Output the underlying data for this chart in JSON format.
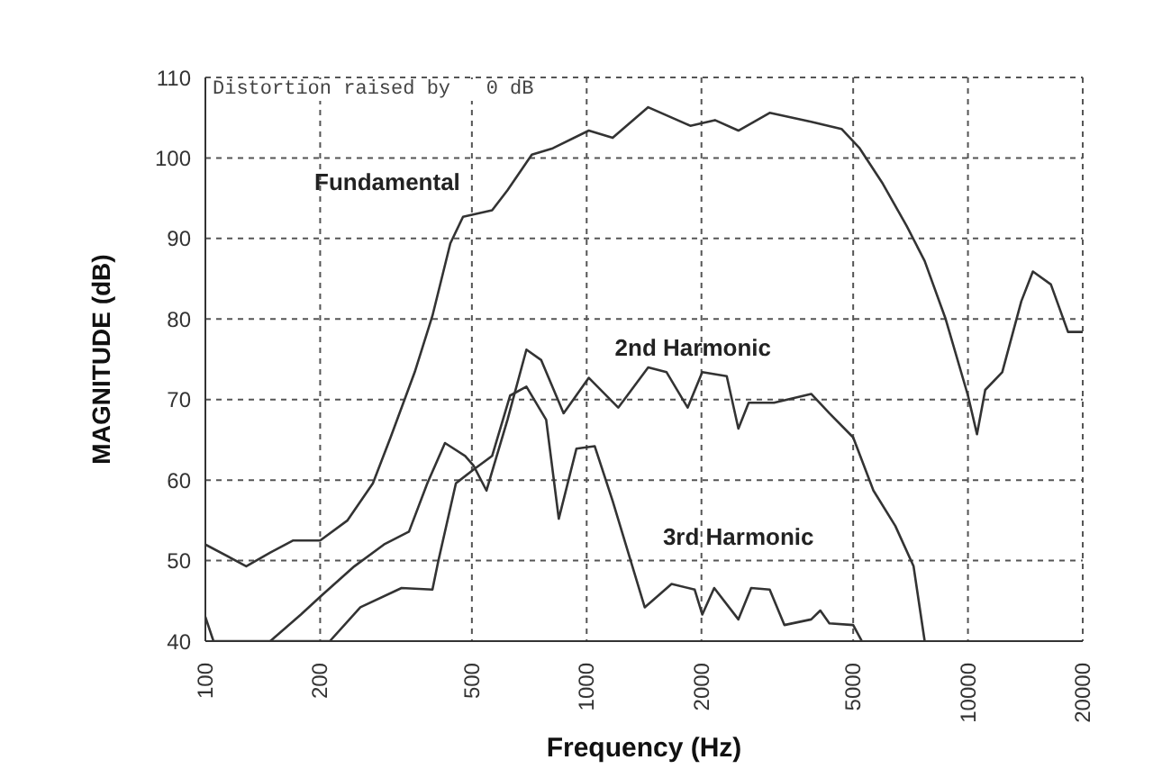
{
  "chart_data": {
    "type": "line",
    "xlabel": "Frequency (Hz)",
    "ylabel": "MAGNITUDE (dB)",
    "log": "x",
    "grid": true,
    "legend": false,
    "marker": "none",
    "line_style": "solid",
    "xlim": [
      100,
      20000
    ],
    "xticks": [
      100,
      200,
      500,
      1000,
      2000,
      5000,
      10000,
      20000
    ],
    "ylim": [
      40,
      110
    ],
    "yticks": [
      40,
      50,
      60,
      70,
      80,
      90,
      100,
      110
    ],
    "annotations": [
      "Distortion raised by   0 dB"
    ],
    "series": [
      {
        "name": "Fundamental",
        "color": "#333333",
        "x": [
          100,
          128,
          148,
          170,
          200,
          236,
          275,
          306,
          354,
          394,
          439,
          474,
          565,
          620,
          718,
          815,
          1013,
          1170,
          1450,
          1870,
          2170,
          2500,
          3020,
          3880,
          4660,
          5200,
          5980,
          6900,
          7700,
          8740,
          10000,
          10560,
          11100,
          12300,
          13800,
          14800,
          16500,
          18300,
          20000
        ],
        "values": [
          52,
          49.3,
          51,
          52.5,
          52.5,
          55,
          59.6,
          65.3,
          73.4,
          80.4,
          89.4,
          92.7,
          93.5,
          96,
          100.4,
          101.2,
          103.4,
          102.5,
          106.3,
          104,
          104.7,
          103.4,
          105.6,
          104.5,
          103.6,
          101.2,
          96.8,
          91.6,
          87.2,
          80,
          70.5,
          65.7,
          71.2,
          73.4,
          82.2,
          85.9,
          84.3,
          78.4,
          78.4
        ]
      },
      {
        "name": "2nd Harmonic",
        "color": "#333333",
        "x": [
          148,
          178,
          200,
          246,
          294,
          342,
          382,
          425,
          480,
          505,
          546,
          620,
          695,
          760,
          870,
          1013,
          1210,
          1450,
          1620,
          1840,
          2010,
          2330,
          2500,
          2660,
          3100,
          3880,
          4330,
          5000,
          5650,
          6450,
          7200,
          7700
        ],
        "values": [
          40,
          43.3,
          45.5,
          49.3,
          52,
          53.6,
          59.6,
          64.6,
          63,
          61.8,
          58.7,
          67.5,
          76.2,
          74.9,
          68.3,
          72.7,
          69,
          74,
          73.4,
          69,
          73.4,
          72.9,
          66.4,
          69.6,
          69.6,
          70.7,
          68.3,
          65.3,
          58.7,
          54.3,
          49.3,
          40
        ]
      },
      {
        "name": "3rd Harmonic",
        "color": "#333333",
        "x": [
          100,
          105,
          212,
          255,
          327,
          394,
          408,
          454,
          505,
          565,
          630,
          695,
          783,
          845,
          940,
          1050,
          1170,
          1420,
          1670,
          1920,
          2010,
          2160,
          2500,
          2700,
          3020,
          3300,
          3880,
          4100,
          4330,
          5000,
          5270
        ],
        "values": [
          43,
          40,
          40,
          44.2,
          46.6,
          46.4,
          49.9,
          59.6,
          61.3,
          63,
          70.5,
          71.6,
          67.5,
          55.2,
          63.9,
          64.2,
          57.4,
          44.2,
          47.1,
          46.4,
          43.3,
          46.6,
          42.7,
          46.6,
          46.4,
          42,
          42.7,
          43.8,
          42.2,
          42,
          40
        ]
      }
    ]
  }
}
